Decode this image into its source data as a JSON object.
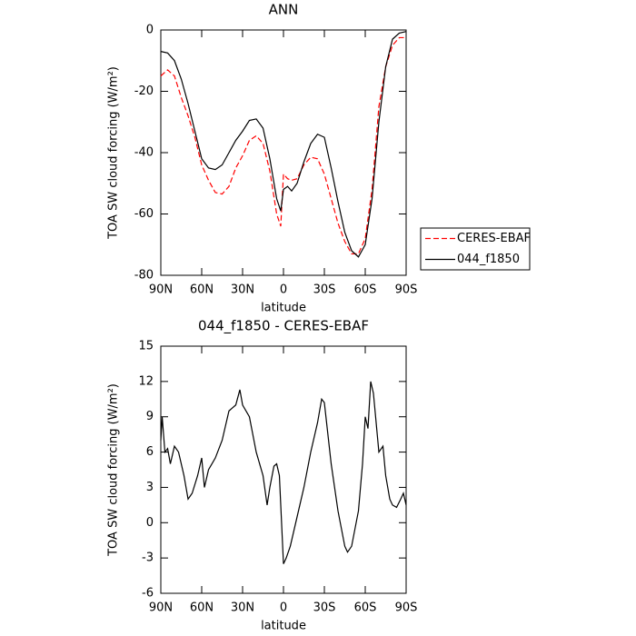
{
  "chart_data": [
    {
      "type": "line",
      "title": "ANN",
      "xlabel": "latitude",
      "ylabel": "TOA SW cloud forcing (W/m²)",
      "x": [
        90,
        85,
        80,
        75,
        70,
        65,
        60,
        55,
        50,
        45,
        40,
        35,
        30,
        25,
        20,
        15,
        10,
        5,
        2,
        0,
        -3,
        -6,
        -10,
        -15,
        -20,
        -25,
        -30,
        -35,
        -40,
        -45,
        -50,
        -55,
        -60,
        -65,
        -70,
        -75,
        -80,
        -85,
        -90
      ],
      "series": [
        {
          "name": "CERES-EBAF",
          "color": "#ff0000",
          "line_style": "dashed",
          "values": [
            -15,
            -13,
            -15,
            -22,
            -28,
            -35,
            -44,
            -49,
            -53,
            -53.5,
            -51,
            -45,
            -41,
            -36,
            -34.5,
            -37,
            -46,
            -60,
            -64,
            -47,
            -48.5,
            -49,
            -48.5,
            -44,
            -41.5,
            -42,
            -47,
            -55,
            -63,
            -69,
            -73,
            -73,
            -68,
            -52,
            -25,
            -12,
            -5,
            -2.5,
            -2.5
          ]
        },
        {
          "name": "044_f1850",
          "color": "#000000",
          "line_style": "solid",
          "values": [
            -7,
            -7.5,
            -10,
            -16,
            -24,
            -33,
            -42,
            -45,
            -45.5,
            -44,
            -40,
            -36,
            -33,
            -29.5,
            -29,
            -32,
            -42,
            -55,
            -59,
            -52,
            -51,
            -52.5,
            -50,
            -43,
            -37,
            -34,
            -35,
            -45,
            -56,
            -66,
            -72,
            -74,
            -70,
            -55,
            -30,
            -12,
            -3,
            -1,
            -0.5
          ]
        }
      ],
      "xlim": [
        90,
        -90
      ],
      "xticks": [
        {
          "value": 90,
          "label": "90N"
        },
        {
          "value": 60,
          "label": "60N"
        },
        {
          "value": 30,
          "label": "30N"
        },
        0,
        {
          "value": -30,
          "label": "30S"
        },
        {
          "value": -60,
          "label": "60S"
        },
        {
          "value": -90,
          "label": "90S"
        }
      ],
      "ylim": [
        -80,
        0
      ],
      "yticks": [
        -80,
        -60,
        -40,
        -20,
        0
      ],
      "legend": "outside-right"
    },
    {
      "type": "line",
      "title": "044_f1850 - CERES-EBAF",
      "xlabel": "latitude",
      "ylabel": "TOA SW cloud forcing (W/m²)",
      "x": [
        90,
        89,
        87,
        85,
        83,
        80,
        77,
        73,
        70,
        67,
        63,
        60,
        58,
        55,
        50,
        45,
        40,
        35,
        32,
        30,
        25,
        20,
        15,
        12,
        10,
        7,
        5,
        3,
        0,
        -2,
        -5,
        -10,
        -15,
        -20,
        -25,
        -28,
        -30,
        -35,
        -40,
        -45,
        -47,
        -50,
        -55,
        -58,
        -60,
        -62,
        -64,
        -66,
        -70,
        -73,
        -75,
        -78,
        -80,
        -83,
        -86,
        -88,
        -90
      ],
      "series": [
        {
          "color": "#000000",
          "line_style": "solid",
          "values": [
            7,
            9,
            6,
            6.3,
            5,
            6.5,
            6,
            4,
            2,
            2.5,
            4,
            5.5,
            3,
            4.5,
            5.5,
            7,
            9.5,
            10,
            11.3,
            10,
            9,
            6,
            4,
            1.5,
            3,
            4.8,
            5,
            4,
            -3.5,
            -3,
            -2,
            0.5,
            3,
            6,
            8.5,
            10.5,
            10.2,
            5,
            1,
            -2,
            -2.5,
            -2,
            1,
            5,
            9,
            8,
            12,
            11,
            6,
            6.5,
            4,
            2,
            1.5,
            1.3,
            2,
            2.5,
            1.5
          ]
        }
      ],
      "xlim": [
        90,
        -90
      ],
      "xticks": [
        {
          "value": 90,
          "label": "90N"
        },
        {
          "value": 60,
          "label": "60N"
        },
        {
          "value": 30,
          "label": "30N"
        },
        0,
        {
          "value": -30,
          "label": "30S"
        },
        {
          "value": -60,
          "label": "60S"
        },
        {
          "value": -90,
          "label": "90S"
        }
      ],
      "ylim": [
        -6,
        15
      ],
      "yticks": [
        -6,
        -3,
        0,
        3,
        6,
        9,
        12,
        15
      ]
    }
  ]
}
